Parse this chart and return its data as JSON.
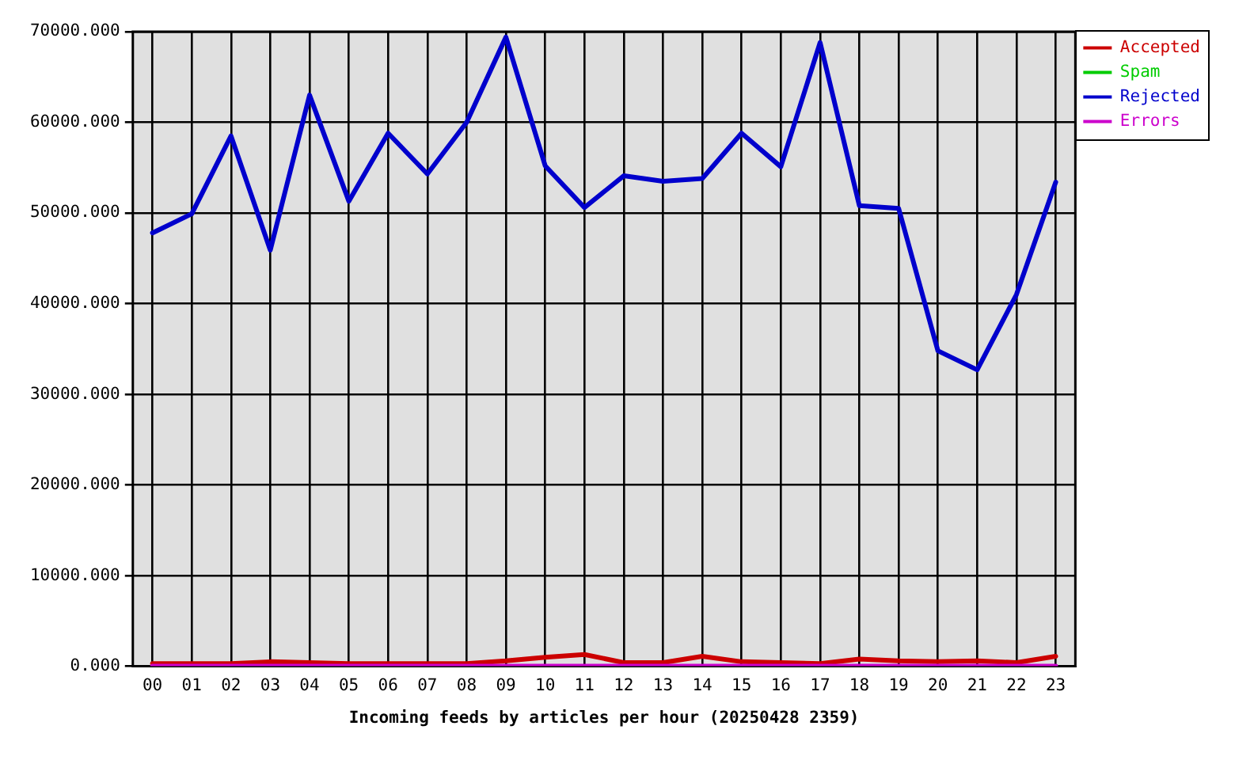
{
  "chart_data": {
    "type": "line",
    "xlabel": "Incoming feeds by articles per hour (20250428 2359)",
    "categories": [
      "00",
      "01",
      "02",
      "03",
      "04",
      "05",
      "06",
      "07",
      "08",
      "09",
      "10",
      "11",
      "12",
      "13",
      "14",
      "15",
      "16",
      "17",
      "18",
      "19",
      "20",
      "21",
      "22",
      "23"
    ],
    "series": [
      {
        "name": "Accepted",
        "color": "#cc0000",
        "values": [
          300,
          300,
          300,
          500,
          400,
          300,
          300,
          300,
          300,
          600,
          1000,
          1300,
          400,
          400,
          1100,
          500,
          400,
          300,
          800,
          600,
          500,
          600,
          400,
          1100
        ]
      },
      {
        "name": "Spam",
        "color": "#00cc00",
        "values": [
          null,
          null,
          null,
          null,
          null,
          null,
          null,
          null,
          null,
          null,
          null,
          null,
          null,
          null,
          null,
          null,
          null,
          null,
          null,
          null,
          null,
          null,
          null,
          null
        ]
      },
      {
        "name": "Rejected",
        "color": "#0000cc",
        "values": [
          47800,
          49900,
          58500,
          45900,
          63000,
          51300,
          58800,
          54300,
          60000,
          69400,
          55200,
          50600,
          54100,
          53500,
          53800,
          58800,
          55100,
          68800,
          50800,
          50500,
          34800,
          32700,
          41000,
          53400
        ]
      },
      {
        "name": "Errors",
        "color": "#cc00cc",
        "values": [
          0,
          0,
          0,
          0,
          0,
          0,
          0,
          0,
          0,
          0,
          0,
          0,
          0,
          0,
          0,
          0,
          0,
          0,
          0,
          0,
          0,
          0,
          0,
          0
        ]
      }
    ],
    "ylim": [
      0,
      70000
    ],
    "yticks": [
      {
        "value": 0,
        "label": "0.000"
      },
      {
        "value": 10000,
        "label": "10000.000"
      },
      {
        "value": 20000,
        "label": "20000.000"
      },
      {
        "value": 30000,
        "label": "30000.000"
      },
      {
        "value": 40000,
        "label": "40000.000"
      },
      {
        "value": 50000,
        "label": "50000.000"
      },
      {
        "value": 60000,
        "label": "60000.000"
      },
      {
        "value": 70000,
        "label": "70000.000"
      }
    ],
    "grid": true,
    "legend": "top right"
  }
}
